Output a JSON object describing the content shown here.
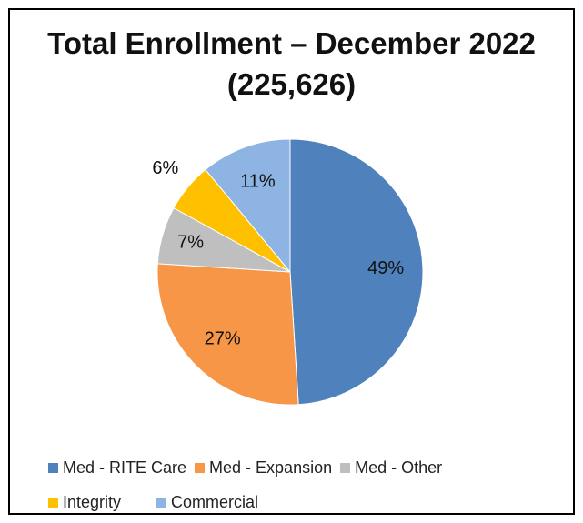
{
  "chart_data": {
    "type": "pie",
    "title_line1": "Total Enrollment – December 2022",
    "title_line2": "(225,626)",
    "slices": [
      {
        "name": "Med - RITE Care",
        "value": 49,
        "label": "49%",
        "color": "#4f81bd"
      },
      {
        "name": "Med - Expansion",
        "value": 27,
        "label": "27%",
        "color": "#f79646"
      },
      {
        "name": "Med - Other",
        "value": 7,
        "label": "7%",
        "color": "#bfbfbf"
      },
      {
        "name": "Integrity",
        "value": 6,
        "label": "6%",
        "color": "#ffc000"
      },
      {
        "name": "Commercial",
        "value": 11,
        "label": "11%",
        "color": "#8db4e2"
      }
    ],
    "legend_position": "bottom"
  }
}
